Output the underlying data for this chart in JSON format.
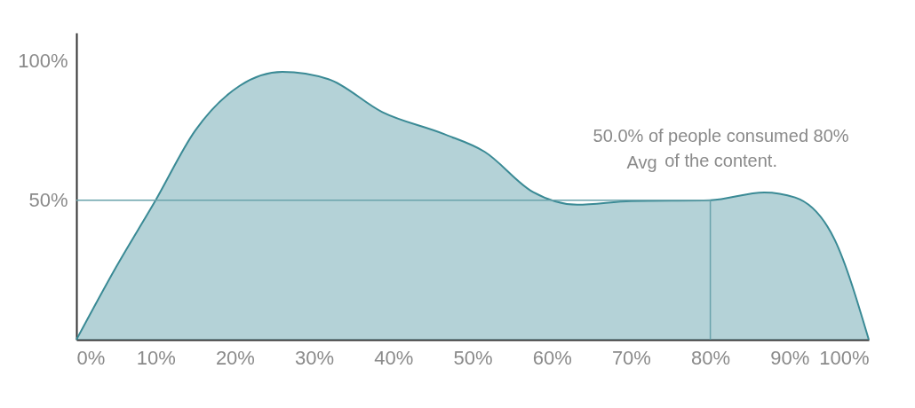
{
  "chart_data": {
    "type": "area",
    "color": "#3a8a95",
    "x": [
      0,
      5,
      10,
      15,
      20.6,
      26,
      31.8,
      38.6,
      46.4,
      51.5,
      57.6,
      63.2,
      70,
      80,
      86.8,
      90.7,
      95.7,
      100
    ],
    "values": [
      0,
      26,
      50,
      75,
      91,
      96,
      93.4,
      81.6,
      73.7,
      67.4,
      53,
      48.4,
      49.7,
      50,
      52.8,
      51,
      35.8,
      0
    ],
    "xlim": [
      0,
      100
    ],
    "ylim": [
      0,
      110
    ],
    "xticks": [
      {
        "value": 0,
        "label": "0%"
      },
      {
        "value": 10,
        "label": "10%"
      },
      {
        "value": 20,
        "label": "20%"
      },
      {
        "value": 30,
        "label": "30%"
      },
      {
        "value": 40,
        "label": "40%"
      },
      {
        "value": 50,
        "label": "50%"
      },
      {
        "value": 60,
        "label": "60%"
      },
      {
        "value": 70,
        "label": "70%"
      },
      {
        "value": 80,
        "label": "80%"
      },
      {
        "value": 90,
        "label": "90%"
      },
      {
        "value": 100,
        "label": "100%"
      }
    ],
    "yticks": [
      {
        "value": 50,
        "label": "50%"
      },
      {
        "value": 100,
        "label": "100%"
      }
    ],
    "ref_lines": [
      {
        "axis": "y",
        "value": 50,
        "label": "Avg",
        "color": "#6aa3ab"
      },
      {
        "axis": "x",
        "value": 80,
        "color": "#6aa3ab"
      }
    ],
    "annotations": [
      {
        "text": "50.0% of people consumed 80%\nof the content.",
        "x": 80,
        "y": 50
      }
    ]
  }
}
